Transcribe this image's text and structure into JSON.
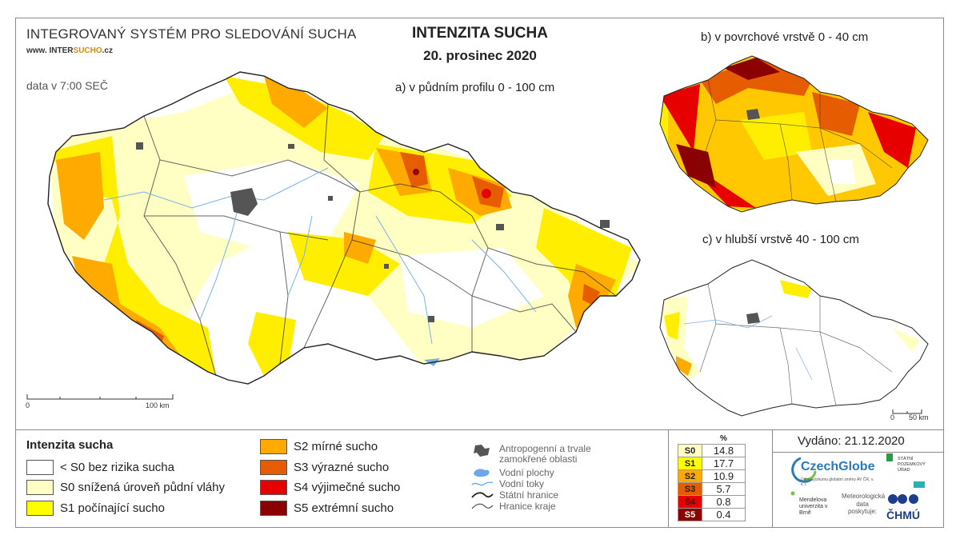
{
  "header": {
    "system_title": "INTEGROVANÝ SYSTÉM PRO SLEDOVÁNÍ SUCHA",
    "url_prefix": "www. INTER",
    "url_highlight": "SUCHO",
    "url_suffix": ".cz",
    "data_time": "data v 7:00 SEČ",
    "main_title": "INTENZITA SUCHA",
    "date": "20. prosinec 2020"
  },
  "maps": {
    "a_label": "a) v půdním profilu 0 - 100 cm",
    "b_label": "b) v povrchové vrstvě 0 - 40 cm",
    "c_label": "c) v hlubší vrstvě 40 - 100 cm",
    "scale_main": {
      "start": "0",
      "end": "100 km"
    },
    "scale_small": {
      "start": "0",
      "end": "50 km"
    }
  },
  "legend": {
    "title": "Intenzita sucha",
    "classes": [
      {
        "label": "< S0 bez rizika sucha",
        "color": "#ffffff"
      },
      {
        "label": "S0 snížená úroveň půdní vláhy",
        "color": "#ffffc4"
      },
      {
        "label": "S1 počínající sucho",
        "color": "#ffff00"
      },
      {
        "label": "S2 mírné sucho",
        "color": "#ffaa00"
      },
      {
        "label": "S3 výrazné sucho",
        "color": "#e65c00"
      },
      {
        "label": "S4 výjimečné sucho",
        "color": "#e60000"
      },
      {
        "label": "S5 extrémní sucho",
        "color": "#8b0000"
      }
    ],
    "symbols": [
      {
        "label": "Antropogenní a trvale zamokřené oblasti",
        "icon": "urban-area-icon"
      },
      {
        "label": "Vodní plochy",
        "icon": "water-body-icon"
      },
      {
        "label": "Vodní toky",
        "icon": "river-icon"
      },
      {
        "label": "Státní hranice",
        "icon": "state-border-icon"
      },
      {
        "label": "Hranice kraje",
        "icon": "region-border-icon"
      }
    ]
  },
  "stats": {
    "unit": "%",
    "rows": [
      {
        "cls": "S0",
        "value": "14.8",
        "color": "#ffffc4"
      },
      {
        "cls": "S1",
        "value": "17.7",
        "color": "#ffff00"
      },
      {
        "cls": "S2",
        "value": "10.9",
        "color": "#ffaa00"
      },
      {
        "cls": "S3",
        "value": "5.7",
        "color": "#e65c00"
      },
      {
        "cls": "S4",
        "value": "0.8",
        "color": "#e60000"
      },
      {
        "cls": "S5",
        "value": "0.4",
        "color": "#8b0000"
      }
    ]
  },
  "footer": {
    "issued": "Vydáno: 21.12.2020",
    "czechglobe": "CzechGlobe",
    "czechglobe_sub": "Ústav výzkumu globální změny AV ČR, v. v. i.",
    "spu": "STÁTNÍ POZEMKOVÝ ÚŘAD",
    "mendelu": "Mendelova univerzita v Brně",
    "meteo_note": "Meteorologická data poskytuje:",
    "chmu": "ČHMÚ"
  }
}
